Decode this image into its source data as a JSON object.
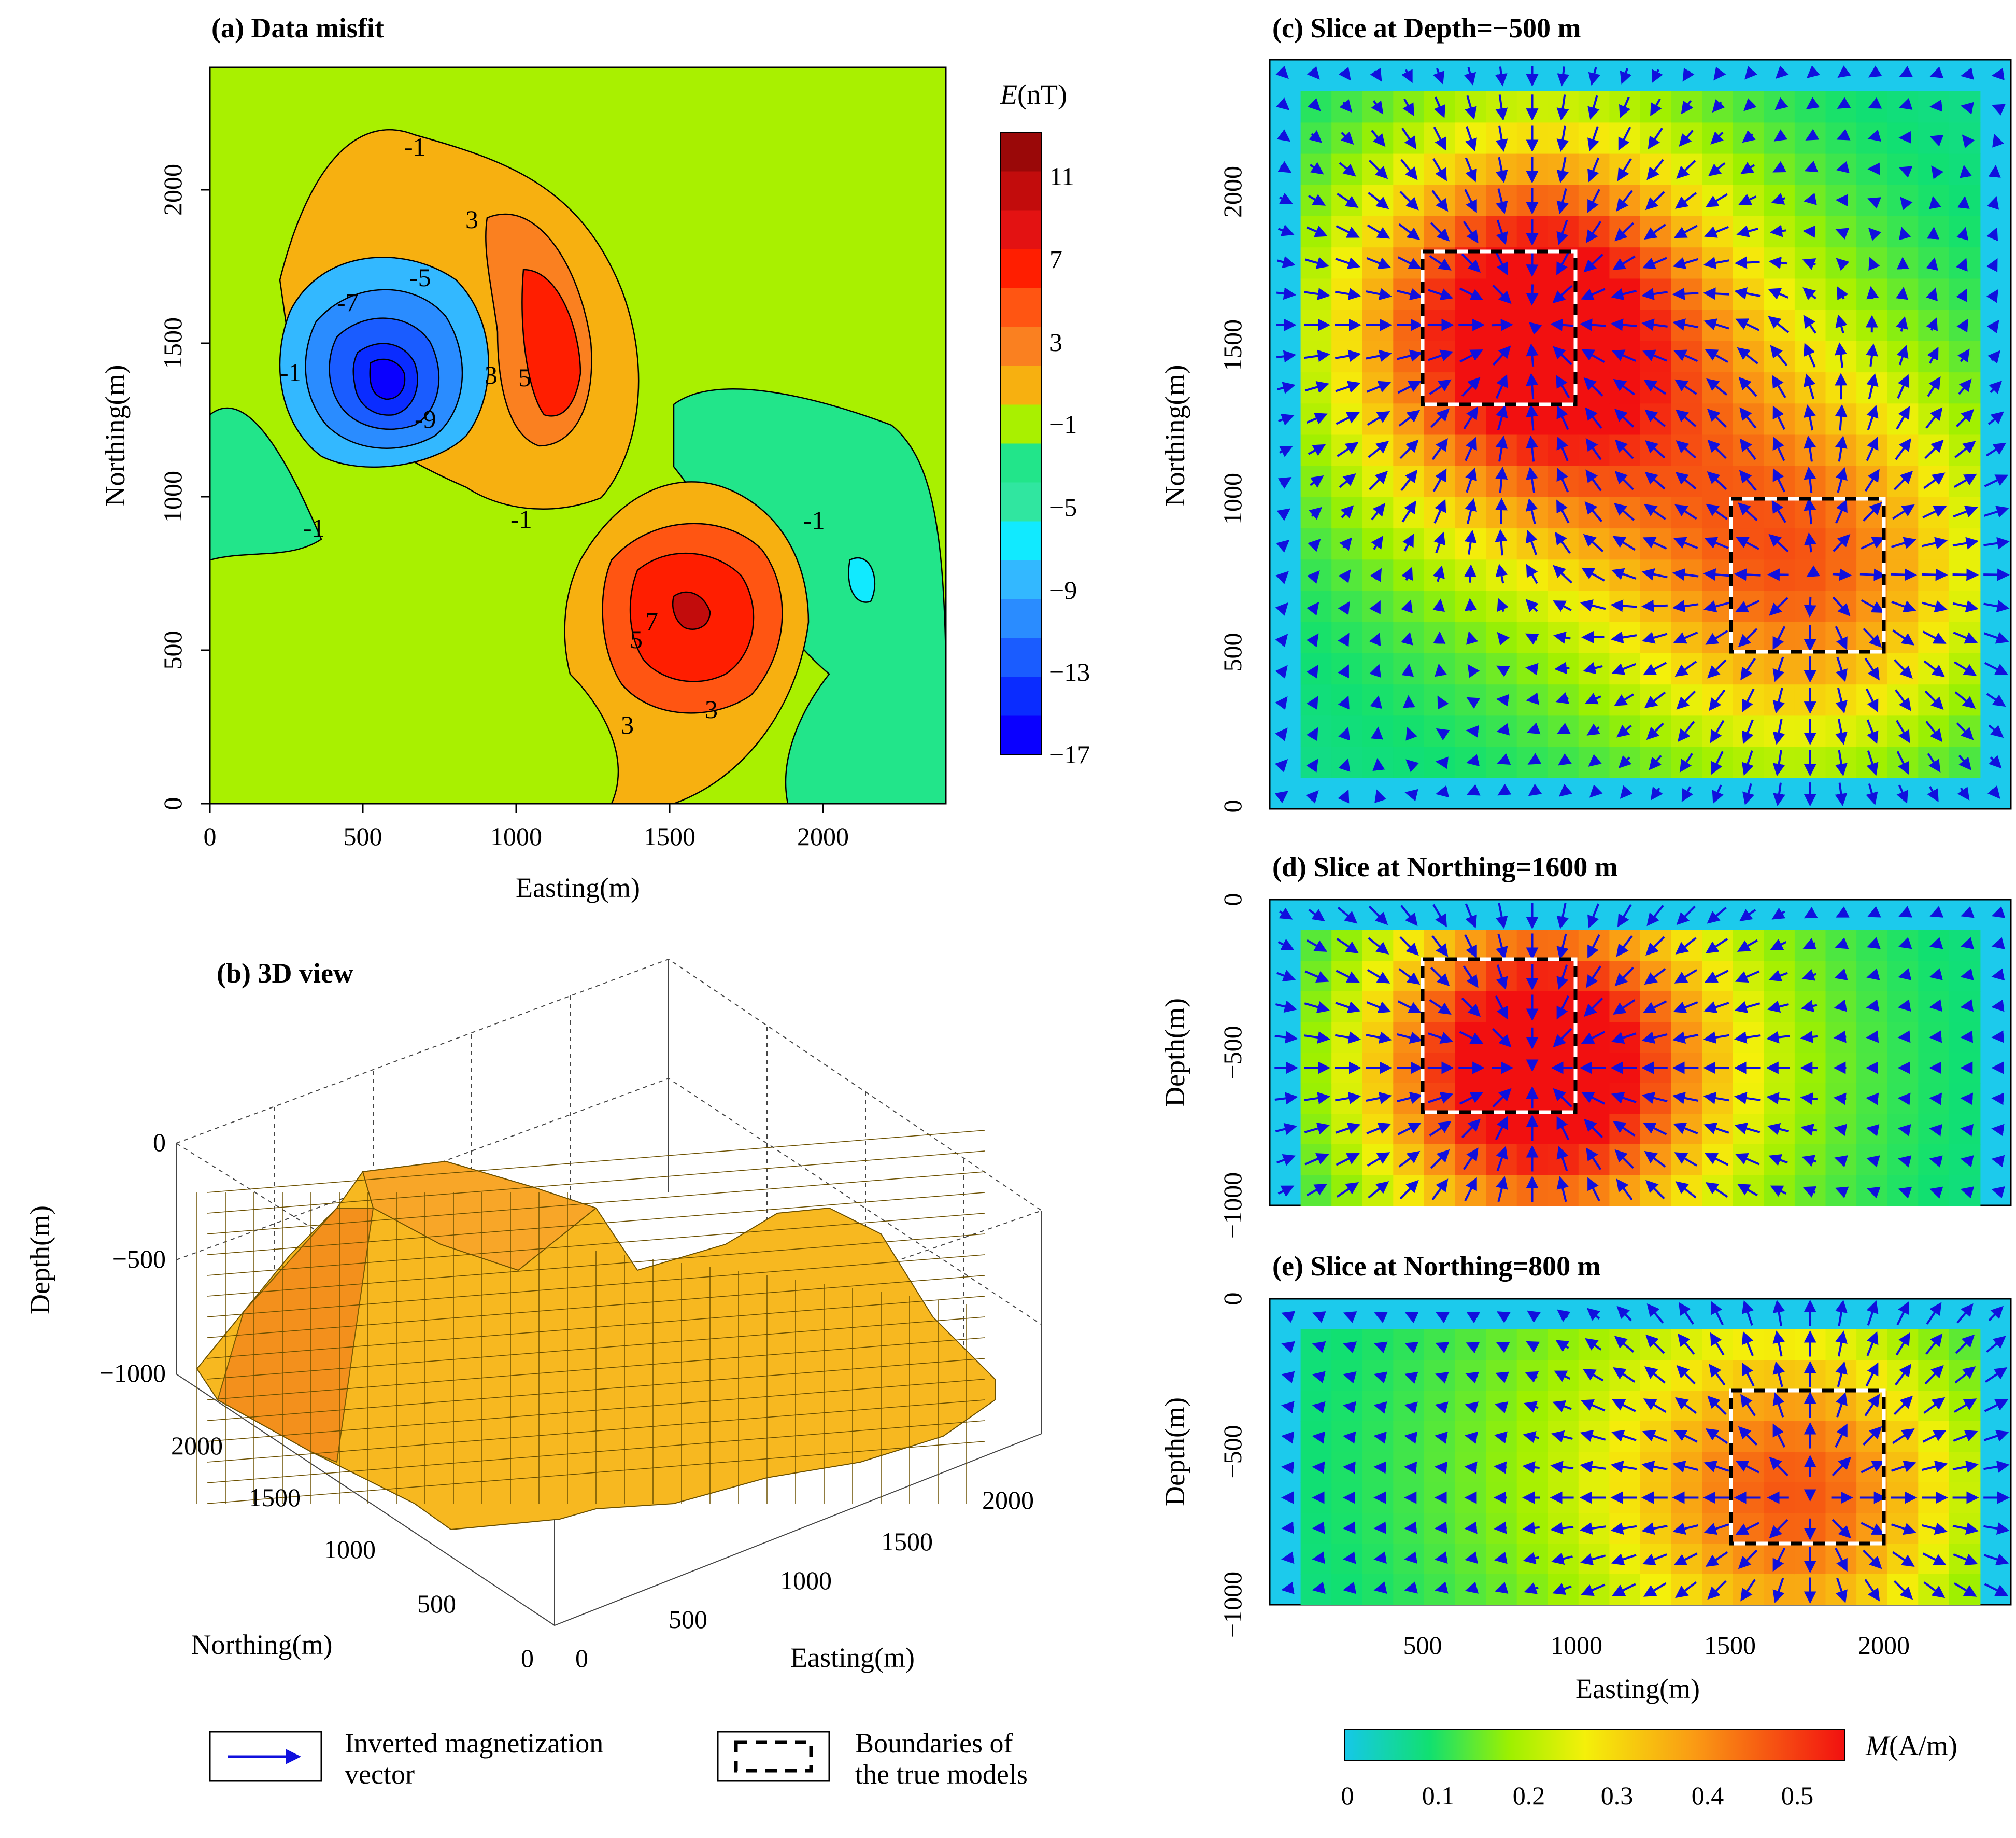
{
  "figure": {
    "panels": {
      "a": {
        "title": "(a) Data misfit",
        "xlabel": "Easting(m)",
        "ylabel": "Northing(m)",
        "xticks": [
          "0",
          "500",
          "1000",
          "1500",
          "2000"
        ],
        "yticks": [
          "0",
          "500",
          "1000",
          "1500",
          "2000"
        ],
        "contour_labels": [
          "-1",
          "-1",
          "-1",
          "-1",
          "-1",
          "3",
          "3",
          "3",
          "3",
          "-5",
          "-7",
          "-9",
          "5",
          "5",
          "7"
        ]
      },
      "b": {
        "title": "(b) 3D view",
        "zlabel": "Depth(m)",
        "ylabel": "Northing(m)",
        "xlabel": "Easting(m)",
        "zticks": [
          "0",
          "−500",
          "−1000"
        ],
        "yticks": [
          "0",
          "500",
          "1000",
          "1500",
          "2000"
        ],
        "xticks": [
          "0",
          "500",
          "1000",
          "1500",
          "2000"
        ]
      },
      "c": {
        "title": "(c) Slice at Depth=−500 m",
        "ylabel": "Northing(m)",
        "yticks": [
          "0",
          "500",
          "1000",
          "1500",
          "2000"
        ]
      },
      "d": {
        "title": "(d) Slice at Northing=1600 m",
        "ylabel": "Depth(m)",
        "yticks": [
          "0",
          "−500",
          "−1000"
        ]
      },
      "e": {
        "title": "(e) Slice at Northing=800 m",
        "ylabel": "Depth(m)",
        "xlabel": "Easting(m)",
        "yticks": [
          "0",
          "−500",
          "−1000"
        ],
        "xticks": [
          "500",
          "1000",
          "1500",
          "2000"
        ]
      }
    },
    "colorbar_E": {
      "label_italic": "E",
      "label_unit": "(nT)",
      "ticks": [
        "11",
        "7",
        "3",
        "−1",
        "−5",
        "−9",
        "−13",
        "−17"
      ],
      "colors": [
        "#0a00ff",
        "#0a2cff",
        "#1a5cff",
        "#2a8cff",
        "#33b8ff",
        "#11eaff",
        "#30e6a0",
        "#22e58a",
        "#a9f000",
        "#f7b010",
        "#fa8020",
        "#ff5512",
        "#ff1e00",
        "#e31212",
        "#c20c0c",
        "#9a0808"
      ]
    },
    "colorbar_M": {
      "label_italic": "M",
      "label_unit": "(A/m)",
      "ticks": [
        "0",
        "0.1",
        "0.2",
        "0.3",
        "0.4",
        "0.5"
      ]
    },
    "legend": {
      "arrow_label": "Inverted magnetization vector",
      "box_label": "Boundaries of the true models"
    }
  },
  "chart_data": [
    {
      "type": "heatmap",
      "title": "(a) Data misfit",
      "xlabel": "Easting(m)",
      "ylabel": "Northing(m)",
      "xlim": [
        0,
        2400
      ],
      "ylim": [
        0,
        2400
      ],
      "colorbar": "E(nT)",
      "crange": [
        -17,
        13
      ],
      "features": [
        {
          "kind": "low",
          "easting": 600,
          "northing": 1450,
          "value": -15
        },
        {
          "kind": "high",
          "easting": 1100,
          "northing": 1500,
          "value": 7
        },
        {
          "kind": "high",
          "easting": 1600,
          "northing": 630,
          "value": 11
        },
        {
          "kind": "plateau",
          "easting": 700,
          "northing": 1950,
          "value": 2
        }
      ]
    },
    {
      "type": "scatter",
      "title": "(b) 3D view",
      "xlabel": "Easting(m)",
      "ylabel": "Northing(m)",
      "zlabel": "Depth(m)",
      "xlim": [
        0,
        2400
      ],
      "ylim": [
        0,
        2400
      ],
      "zlim": [
        -1000,
        0
      ]
    },
    {
      "type": "heatmap",
      "title": "(c) Slice at Depth=−500 m",
      "xlabel": "Easting(m)",
      "ylabel": "Northing(m)",
      "xlim": [
        0,
        2400
      ],
      "ylim": [
        0,
        2400
      ],
      "colorbar": "M(A/m)",
      "crange": [
        0,
        0.55
      ],
      "true_models": [
        {
          "easting": [
            500,
            1000
          ],
          "northing": [
            1300,
            1800
          ]
        },
        {
          "easting": [
            1500,
            2000
          ],
          "northing": [
            500,
            1000
          ]
        }
      ],
      "sources": [
        {
          "easting": 800,
          "northing": 1550,
          "sense": "inward",
          "peak": 0.52
        },
        {
          "easting": 1750,
          "northing": 750,
          "sense": "outward",
          "peak": 0.4
        }
      ]
    },
    {
      "type": "heatmap",
      "title": "(d) Slice at Northing=1600 m",
      "xlabel": "Easting(m)",
      "ylabel": "Depth(m)",
      "xlim": [
        0,
        2400
      ],
      "ylim": [
        -1000,
        0
      ],
      "colorbar": "M(A/m)",
      "true_models": [
        {
          "easting": [
            500,
            1000
          ],
          "depth": [
            -700,
            -200
          ]
        }
      ]
    },
    {
      "type": "heatmap",
      "title": "(e) Slice at Northing=800 m",
      "xlabel": "Easting(m)",
      "ylabel": "Depth(m)",
      "xlim": [
        0,
        2400
      ],
      "ylim": [
        -1000,
        0
      ],
      "colorbar": "M(A/m)",
      "true_models": [
        {
          "easting": [
            1500,
            2000
          ],
          "depth": [
            -800,
            -300
          ]
        }
      ]
    }
  ]
}
